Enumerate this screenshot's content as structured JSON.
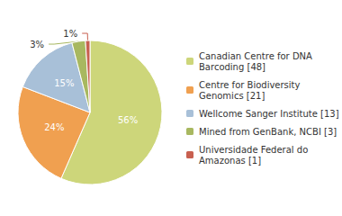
{
  "chart_data": {
    "type": "pie",
    "categories": [
      "Canadian Centre for DNA\nBarcoding [48]",
      "Centre for Biodiversity\nGenomics [21]",
      "Wellcome Sanger Institute [13]",
      "Mined from GenBank, NCBI [3]",
      "Universidade Federal do\nAmazonas [1]"
    ],
    "values": [
      56,
      24,
      15,
      3,
      1
    ],
    "value_labels": [
      "56%",
      "24%",
      "15%",
      "3%",
      "1%"
    ],
    "colors": [
      "#cdd67a",
      "#f0a050",
      "#a8c0d8",
      "#a8b860",
      "#c86050"
    ],
    "data_labels": true,
    "legend": "right"
  }
}
